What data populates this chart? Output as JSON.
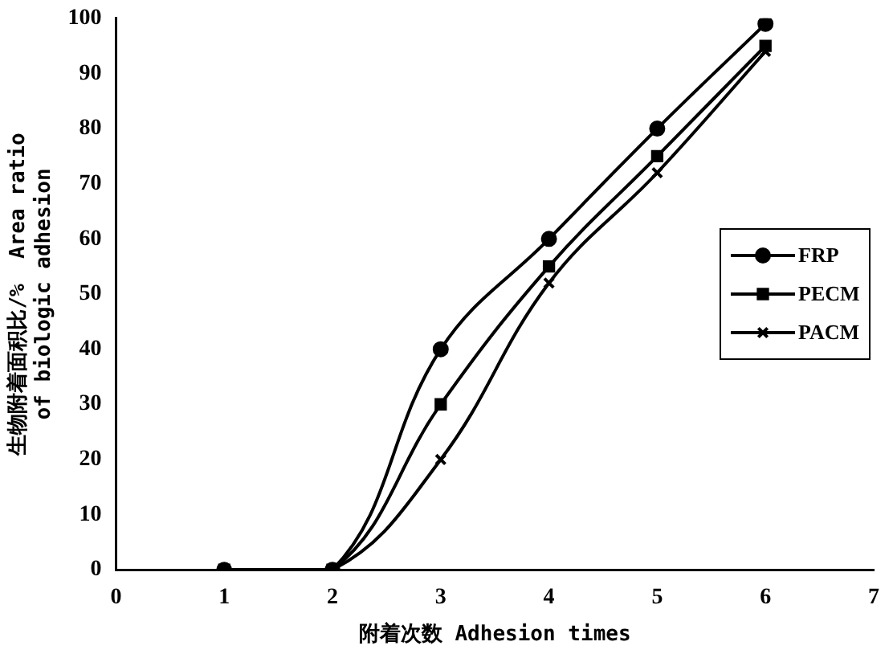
{
  "chart_data": {
    "type": "line",
    "xlabel": "附着次数 Adhesion times",
    "ylabel": "生物附着面积比/%  Area ratio\nof biologic adhesion",
    "x": [
      1,
      2,
      3,
      4,
      5,
      6
    ],
    "series": [
      {
        "name": "FRP",
        "color": "#000000",
        "marker": "circle",
        "values": [
          0,
          0,
          40,
          60,
          80,
          99
        ]
      },
      {
        "name": "PECM",
        "color": "#000000",
        "marker": "square",
        "values": [
          0,
          0,
          30,
          55,
          75,
          95
        ]
      },
      {
        "name": "PACM",
        "color": "#000000",
        "marker": "cross",
        "values": [
          0,
          0,
          20,
          52,
          72,
          94
        ]
      }
    ],
    "xlim": [
      0,
      7
    ],
    "xticks": [
      0,
      1,
      2,
      3,
      4,
      5,
      6,
      7
    ],
    "ylim": [
      0,
      100
    ],
    "yticks": [
      0,
      10,
      20,
      30,
      40,
      50,
      60,
      70,
      80,
      90,
      100
    ],
    "grid": false,
    "legend": "right",
    "line_style": "solid"
  }
}
